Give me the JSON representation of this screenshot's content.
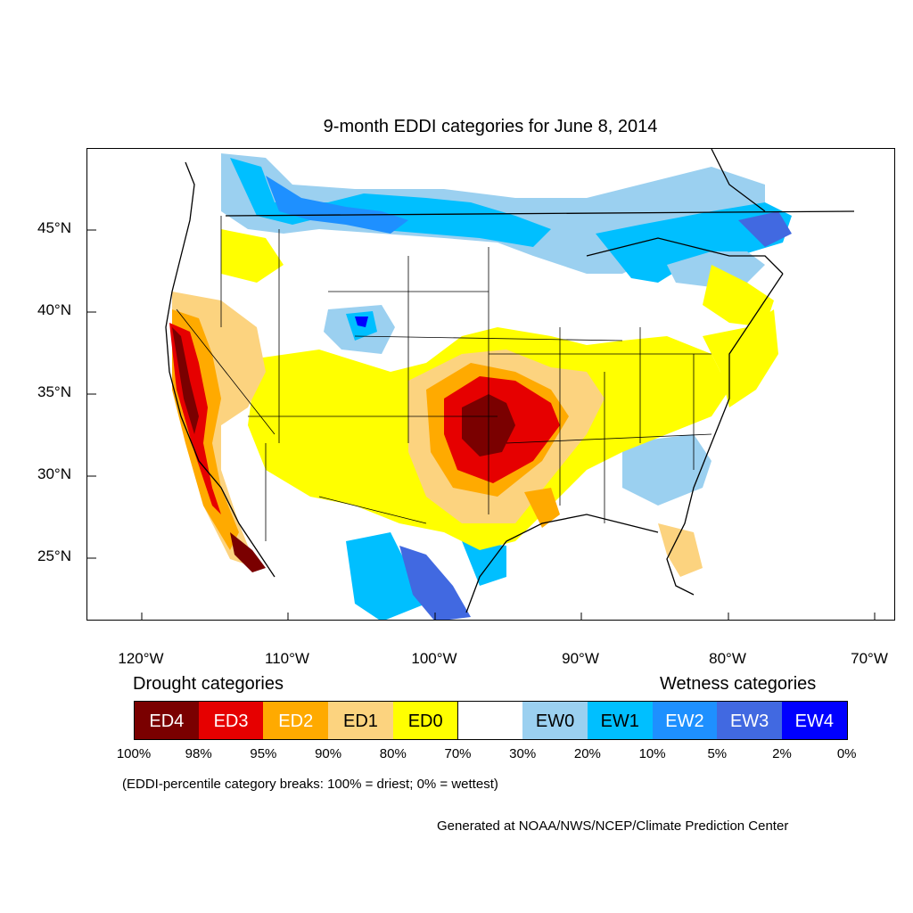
{
  "title": "9-month EDDI categories for June 8, 2014",
  "axes": {
    "y_ticks": [
      "45°N",
      "40°N",
      "35°N",
      "30°N",
      "25°N"
    ],
    "x_ticks": [
      "120°W",
      "110°W",
      "100°W",
      "90°W",
      "80°W",
      "70°W"
    ]
  },
  "legend": {
    "drought_heading": "Drought categories",
    "wetness_heading": "Wetness categories",
    "categories": [
      {
        "label": "ED4",
        "color": "#7a0000",
        "text_color": "#ffffff"
      },
      {
        "label": "ED3",
        "color": "#e60000",
        "text_color": "#ffffff"
      },
      {
        "label": "ED2",
        "color": "#ffaa00",
        "text_color": "#ffffff"
      },
      {
        "label": "ED1",
        "color": "#fcd37f",
        "text_color": "#000000"
      },
      {
        "label": "ED0",
        "color": "#ffff00",
        "text_color": "#000000"
      },
      {
        "label": "",
        "color": "#ffffff",
        "text_color": "#000000"
      },
      {
        "label": "EW0",
        "color": "#9bd0f0",
        "text_color": "#000000"
      },
      {
        "label": "EW1",
        "color": "#00bfff",
        "text_color": "#000000"
      },
      {
        "label": "EW2",
        "color": "#1e90ff",
        "text_color": "#ffffff"
      },
      {
        "label": "EW3",
        "color": "#4169e1",
        "text_color": "#ffffff"
      },
      {
        "label": "EW4",
        "color": "#0000ff",
        "text_color": "#ffffff"
      }
    ],
    "breaks": [
      "100%",
      "98%",
      "95%",
      "90%",
      "80%",
      "70%",
      "30%",
      "20%",
      "10%",
      "5%",
      "2%",
      "0%"
    ]
  },
  "breaks_note": "(EDDI-percentile category breaks: 100% = driest; 0% = wettest)",
  "credit": "Generated at NOAA/NWS/NCEP/Climate Prediction Center"
}
